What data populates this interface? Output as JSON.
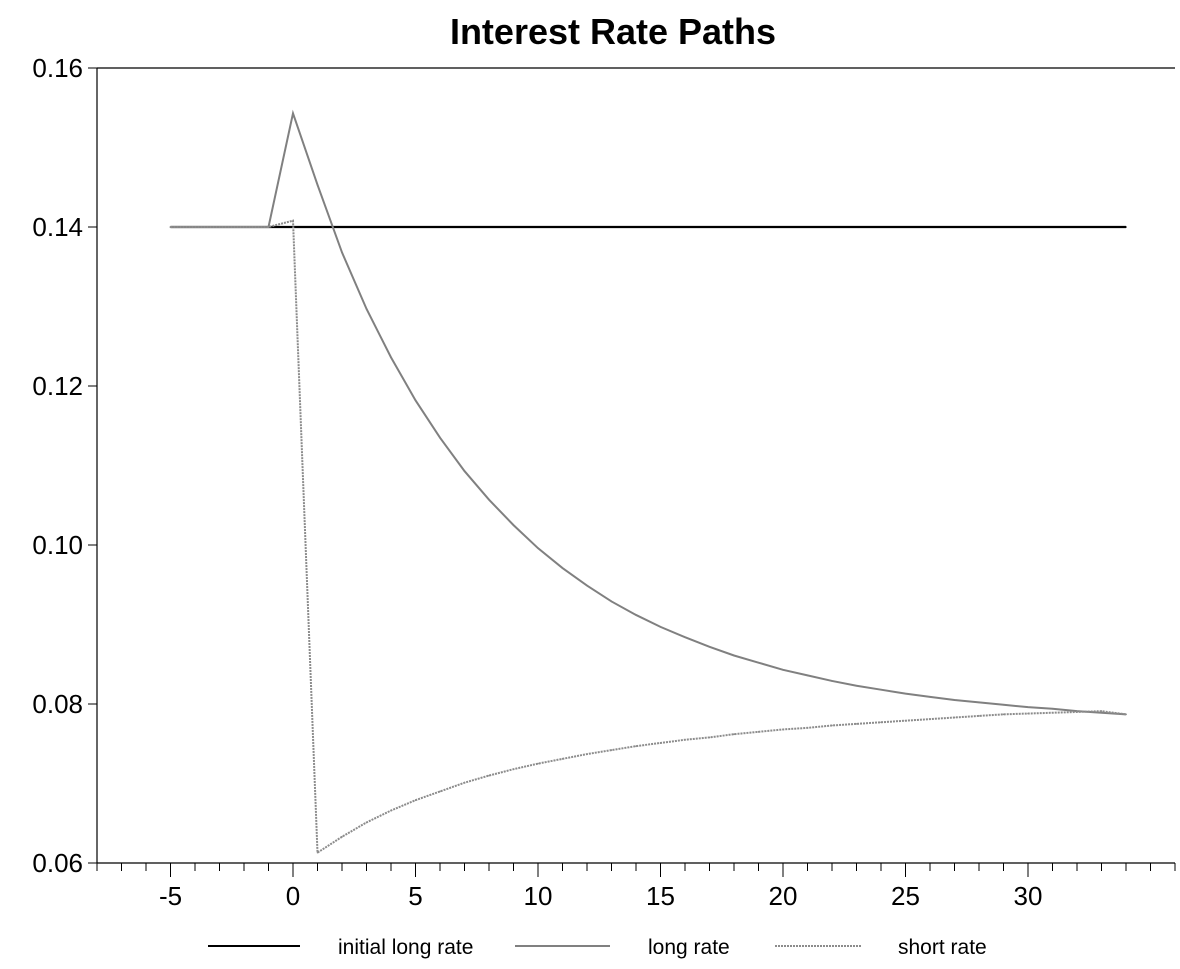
{
  "chart_data": {
    "type": "line",
    "title": "Interest Rate Paths",
    "xlabel": "",
    "ylabel": "",
    "xlim": [
      -8,
      36
    ],
    "ylim": [
      0.06,
      0.16
    ],
    "x_ticks": [
      -5,
      0,
      5,
      10,
      15,
      20,
      25,
      30
    ],
    "x_tick_labels": [
      "-5",
      "0",
      "5",
      "10",
      "15",
      "20",
      "25",
      "30"
    ],
    "x_minor_step": 1,
    "y_ticks": [
      0.06,
      0.08,
      0.1,
      0.12,
      0.14,
      0.16
    ],
    "y_tick_labels": [
      "0.06",
      "0.08",
      "0.10",
      "0.12",
      "0.14",
      "0.16"
    ],
    "grid": false,
    "legend_position": "bottom",
    "series": [
      {
        "name": "initial long rate",
        "color": "#000000",
        "style": "solid",
        "x": [
          -5,
          34
        ],
        "y": [
          0.14,
          0.14
        ]
      },
      {
        "name": "long rate",
        "color": "#808080",
        "style": "solid",
        "x": [
          -5,
          -1,
          0,
          1,
          2,
          3,
          4,
          5,
          6,
          7,
          8,
          9,
          10,
          11,
          12,
          13,
          14,
          15,
          16,
          17,
          18,
          19,
          20,
          21,
          22,
          23,
          24,
          25,
          26,
          27,
          28,
          29,
          30,
          31,
          32,
          33,
          34
        ],
        "y": [
          0.14,
          0.14,
          0.1543,
          0.1453,
          0.1368,
          0.1297,
          0.1236,
          0.1182,
          0.1135,
          0.1093,
          0.1057,
          0.1025,
          0.0996,
          0.0971,
          0.0949,
          0.0929,
          0.0912,
          0.0897,
          0.0884,
          0.0872,
          0.0861,
          0.0852,
          0.0843,
          0.0836,
          0.0829,
          0.0823,
          0.0818,
          0.0813,
          0.0809,
          0.0805,
          0.0802,
          0.0799,
          0.0796,
          0.0794,
          0.0791,
          0.0789,
          0.0787
        ]
      },
      {
        "name": "short rate",
        "color": "#8c8c8c",
        "style": "dotted",
        "x": [
          -5,
          -1,
          0,
          1,
          2,
          3,
          4,
          5,
          6,
          7,
          8,
          9,
          10,
          11,
          12,
          13,
          14,
          15,
          16,
          17,
          18,
          19,
          20,
          21,
          22,
          23,
          24,
          25,
          26,
          27,
          28,
          29,
          30,
          31,
          32,
          33,
          34
        ],
        "y": [
          0.14,
          0.14,
          0.1408,
          0.0613,
          0.0633,
          0.0651,
          0.0666,
          0.0679,
          0.069,
          0.0701,
          0.071,
          0.0718,
          0.0725,
          0.0731,
          0.0737,
          0.0742,
          0.0747,
          0.0751,
          0.0755,
          0.0758,
          0.0762,
          0.0765,
          0.0768,
          0.077,
          0.0773,
          0.0775,
          0.0777,
          0.0779,
          0.0781,
          0.0783,
          0.0785,
          0.0787,
          0.0788,
          0.0789,
          0.079,
          0.0791,
          0.0787
        ]
      }
    ]
  }
}
